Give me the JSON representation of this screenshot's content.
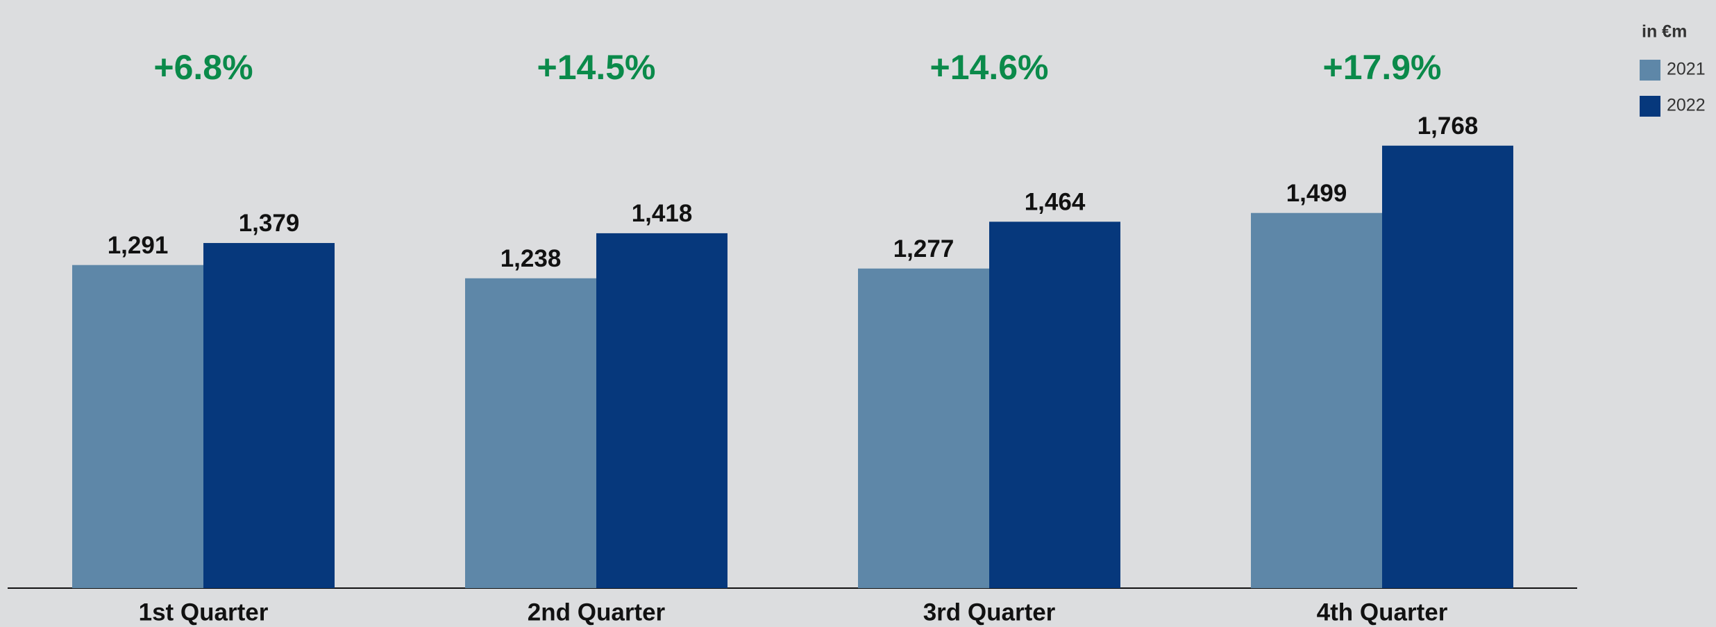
{
  "chart_data": {
    "type": "bar",
    "legend_title": "in €m",
    "categories": [
      "1st Quarter",
      "2nd Quarter",
      "3rd Quarter",
      "4th Quarter"
    ],
    "series": [
      {
        "name": "2021",
        "color": "#5e87a8",
        "values": [
          1291,
          1238,
          1277,
          1499
        ],
        "value_labels": [
          "1,291",
          "1,238",
          "1,277",
          "1,499"
        ]
      },
      {
        "name": "2022",
        "color": "#06387c",
        "values": [
          1379,
          1418,
          1464,
          1768
        ],
        "value_labels": [
          "1,379",
          "1,418",
          "1,464",
          "1,768"
        ]
      }
    ],
    "annotations": [
      "+6.8%",
      "+14.5%",
      "+14.6%",
      "+17.9%"
    ],
    "annotation_color": "#0a8a4a",
    "ylim": [
      0,
      2350
    ],
    "legend": "top-right"
  }
}
